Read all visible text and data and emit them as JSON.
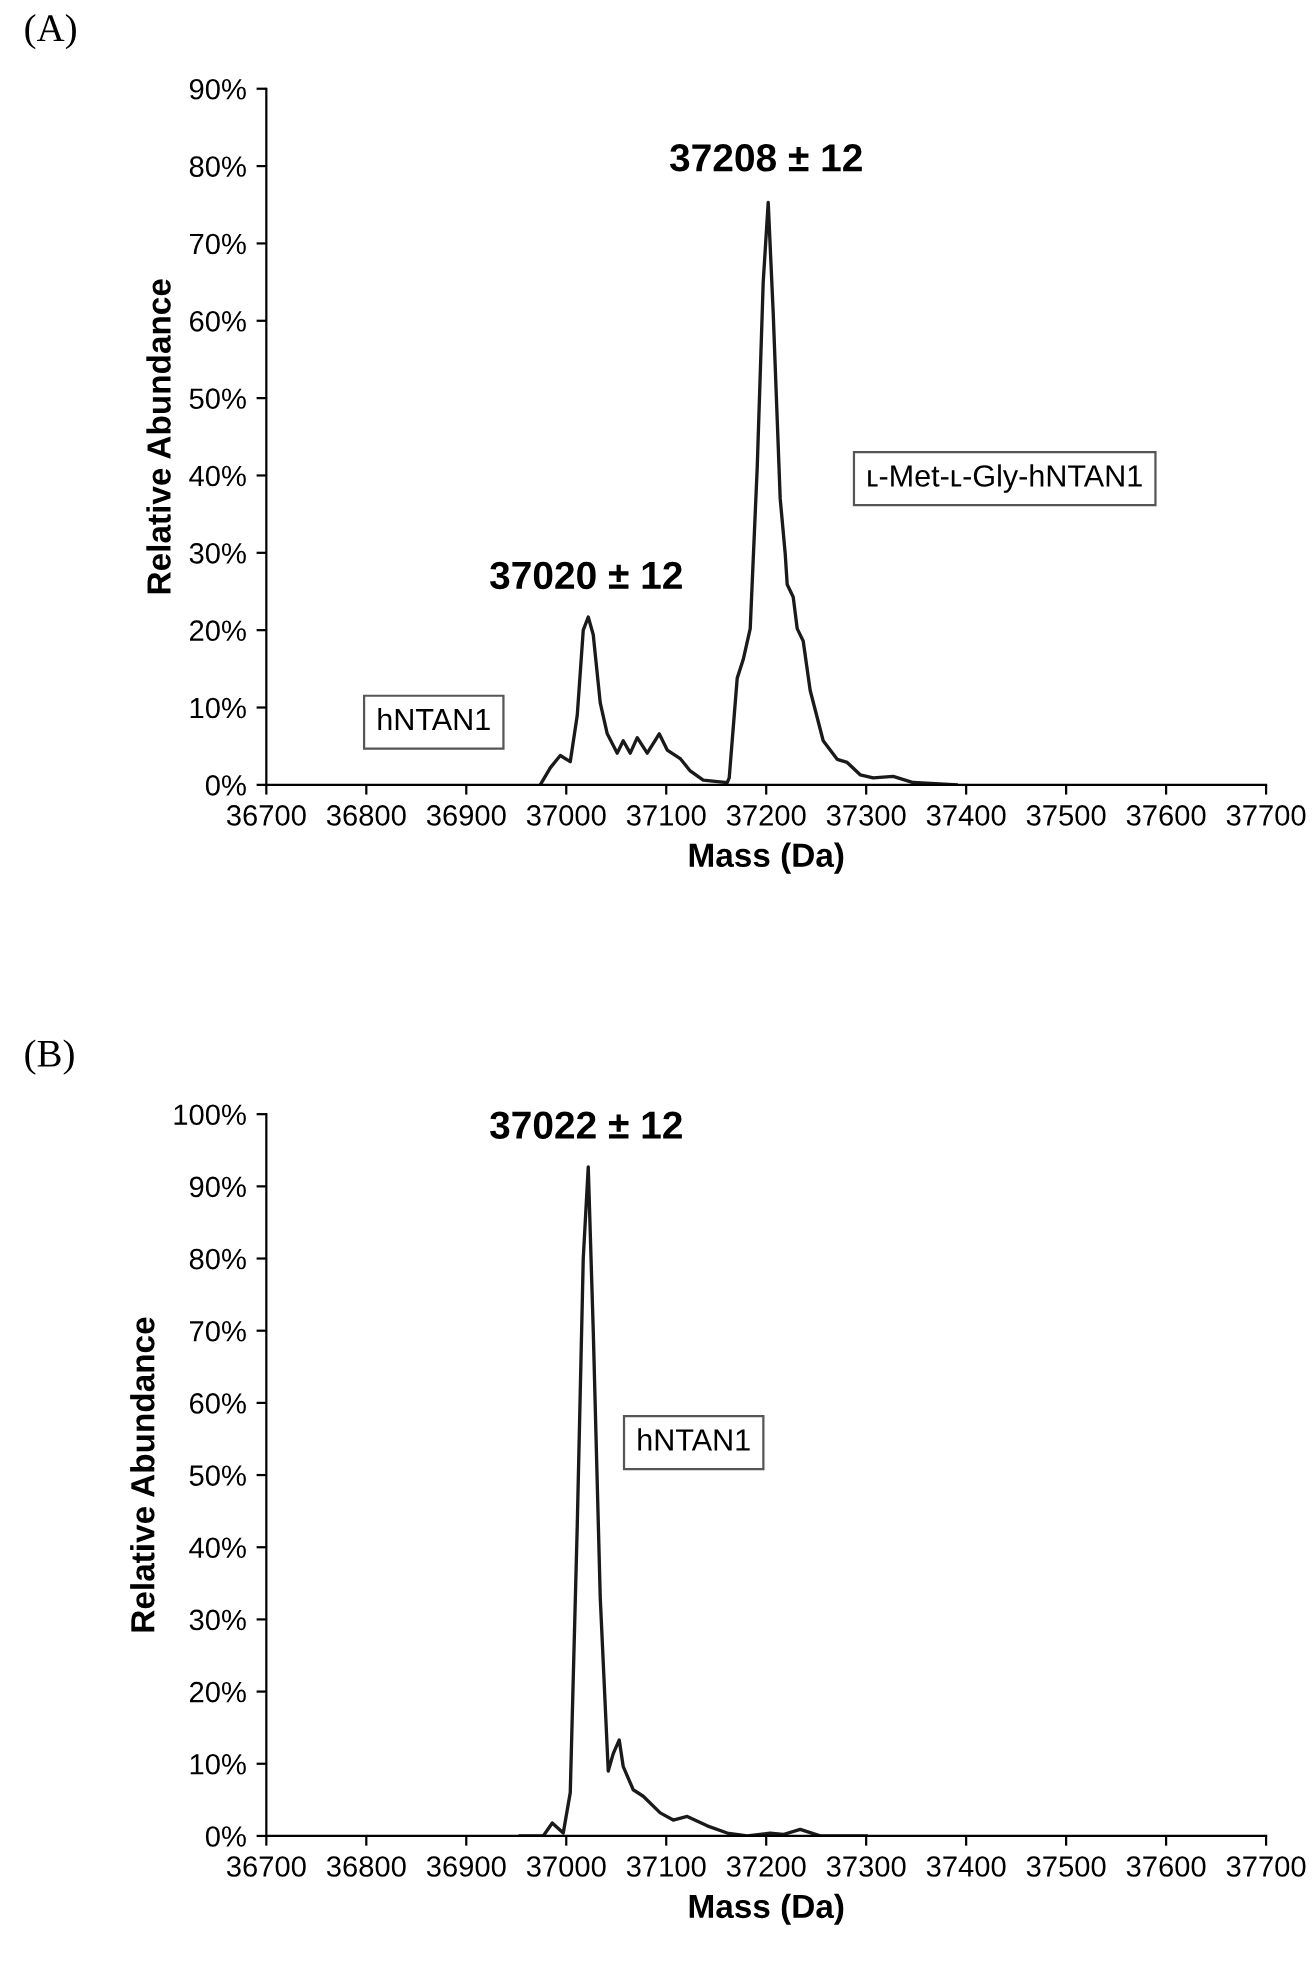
{
  "chart_data": [
    {
      "type": "line",
      "title": "(A)",
      "xlabel": "Mass (Da)",
      "ylabel": "Relative Abundance",
      "grid": false,
      "legend": false,
      "marker": "none",
      "line_style": "solid",
      "xlim": [
        36700,
        37700
      ],
      "xticks": [
        36700,
        36800,
        36900,
        37000,
        37100,
        37200,
        37300,
        37400,
        37500,
        37600,
        37700
      ],
      "ylim": [
        0,
        90
      ],
      "yticks": [
        {
          "value": 0,
          "label": "0%"
        },
        {
          "value": 10,
          "label": "10%"
        },
        {
          "value": 20,
          "label": "20%"
        },
        {
          "value": 30,
          "label": "30%"
        },
        {
          "value": 40,
          "label": "40%"
        },
        {
          "value": 50,
          "label": "50%"
        },
        {
          "value": 60,
          "label": "60%"
        },
        {
          "value": 70,
          "label": "70%"
        },
        {
          "value": 80,
          "label": "80%"
        },
        {
          "value": 90,
          "label": "90%"
        }
      ],
      "series": [
        {
          "color": "#1a1a1a",
          "x": [
            36974,
            36984,
            36994,
            37004,
            37011,
            37017,
            37022,
            37027,
            37034,
            37041,
            37051,
            37057,
            37064,
            37071,
            37081,
            37093,
            37101,
            37114,
            37124,
            37137,
            37161,
            37163,
            37171,
            37177,
            37184,
            37191,
            37197,
            37202,
            37207,
            37214,
            37219,
            37221,
            37227,
            37231,
            37237,
            37244,
            37257,
            37271,
            37281,
            37294,
            37307,
            37327,
            37347,
            37390
          ],
          "values": [
            0,
            2.2,
            3.8,
            3,
            9,
            20,
            21.7,
            19.4,
            10.6,
            6.6,
            4.1,
            5.7,
            4.1,
            6.1,
            4.1,
            6.6,
            4.5,
            3.4,
            1.8,
            0.6,
            0.3,
            0.9,
            13.8,
            16.2,
            20.2,
            41,
            65,
            75.3,
            61,
            37,
            29.9,
            25.9,
            24.3,
            20.2,
            18.6,
            12.2,
            5.7,
            3.3,
            2.9,
            1.3,
            0.9,
            1.1,
            0.3,
            0
          ]
        }
      ],
      "annotations": [
        "37020 ± 12",
        "37208 ± 12",
        "hNTAN1",
        "ʟ-Met-ʟ-Gly-hNTAN1"
      ]
    },
    {
      "type": "line",
      "title": "(B)",
      "xlabel": "Mass (Da)",
      "ylabel": "Relative Abundance",
      "grid": false,
      "legend": false,
      "marker": "none",
      "line_style": "solid",
      "xlim": [
        36700,
        37700
      ],
      "xticks": [
        36700,
        36800,
        36900,
        37000,
        37100,
        37200,
        37300,
        37400,
        37500,
        37600,
        37700
      ],
      "ylim": [
        0,
        100
      ],
      "yticks": [
        {
          "value": 0,
          "label": "0%"
        },
        {
          "value": 10,
          "label": "10%"
        },
        {
          "value": 20,
          "label": "20%"
        },
        {
          "value": 30,
          "label": "30%"
        },
        {
          "value": 40,
          "label": "40%"
        },
        {
          "value": 50,
          "label": "50%"
        },
        {
          "value": 60,
          "label": "60%"
        },
        {
          "value": 70,
          "label": "70%"
        },
        {
          "value": 80,
          "label": "80%"
        },
        {
          "value": 90,
          "label": "90%"
        },
        {
          "value": 100,
          "label": "100%"
        }
      ],
      "series": [
        {
          "color": "#1a1a1a",
          "x": [
            36954,
            36977,
            36986,
            36997,
            37004,
            37011,
            37017,
            37022,
            37027,
            37034,
            37042,
            37047,
            37053,
            37057,
            37067,
            37077,
            37094,
            37107,
            37121,
            37141,
            37161,
            37181,
            37204,
            37217,
            37234,
            37254,
            37300
          ],
          "values": [
            0,
            0,
            1.8,
            0.4,
            6,
            43,
            80,
            92.7,
            70,
            33,
            9,
            11.4,
            13.3,
            9.6,
            6.4,
            5.5,
            3.2,
            2.2,
            2.7,
            1.4,
            0.4,
            0,
            0.4,
            0.2,
            0.9,
            0,
            0
          ]
        }
      ],
      "annotations": [
        "37022 ± 12",
        "hNTAN1"
      ]
    }
  ]
}
